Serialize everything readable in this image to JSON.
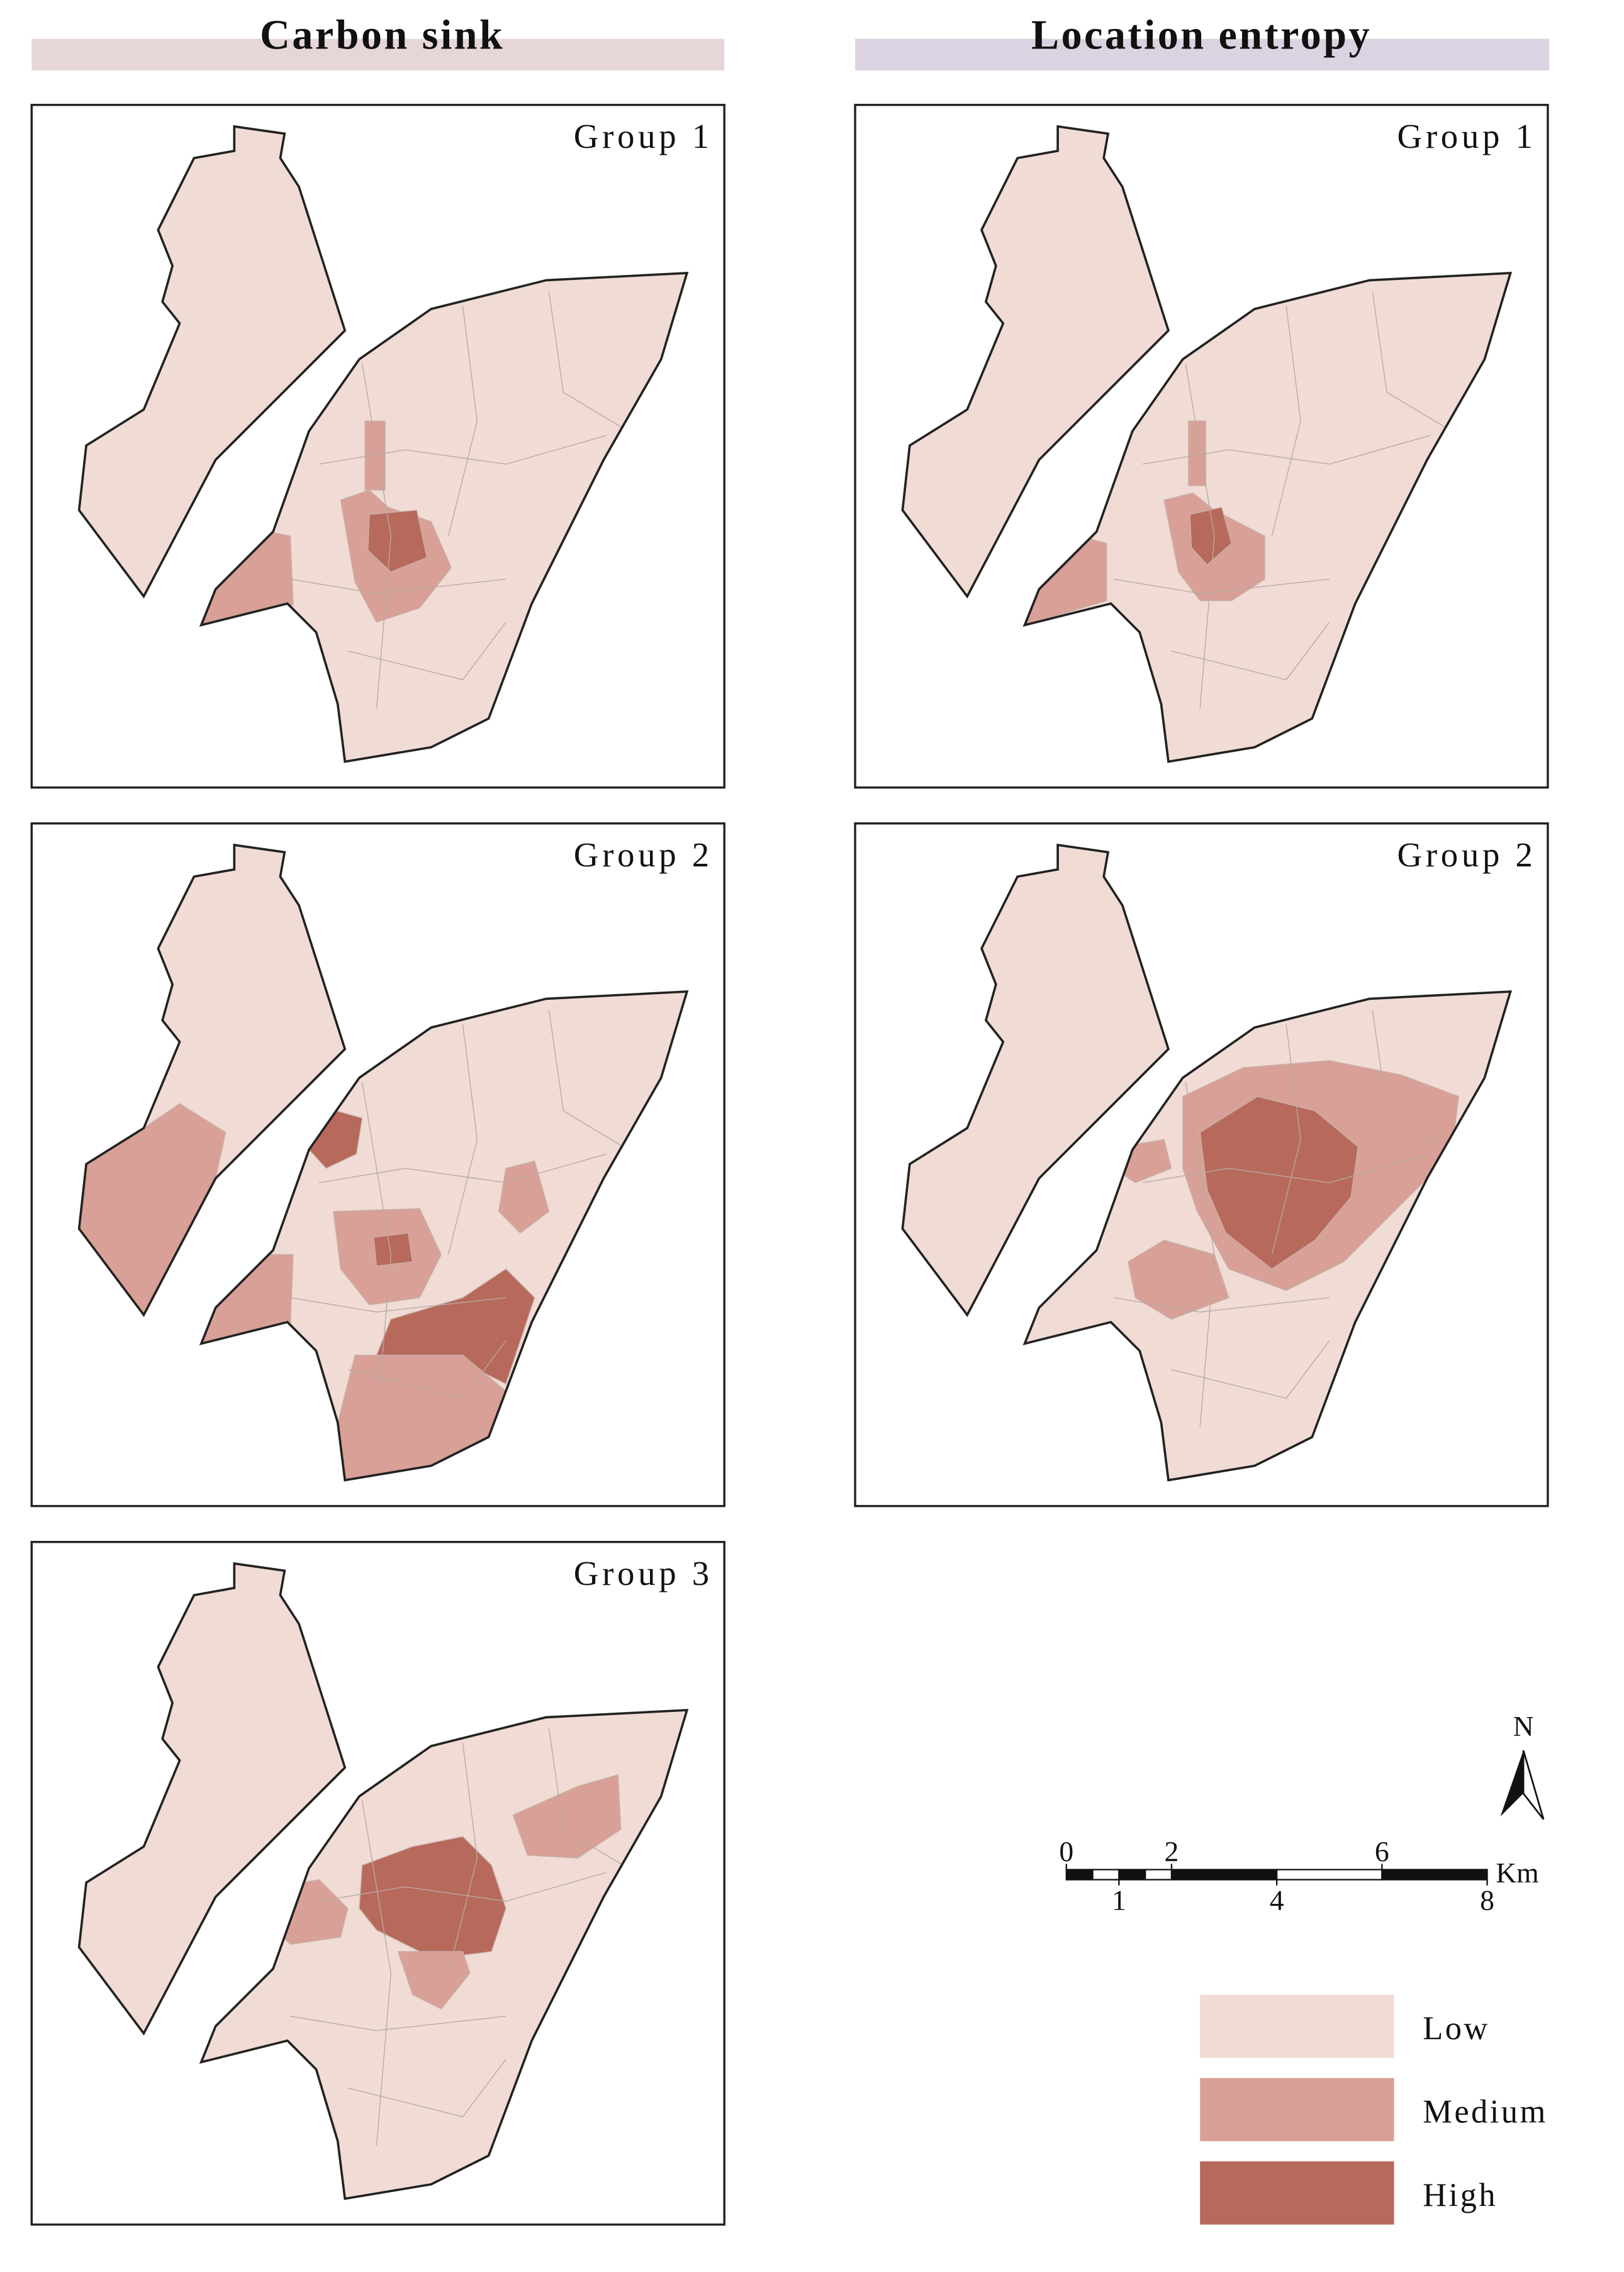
{
  "carbon_sink": {
    "title": "Carbon sink",
    "panels": [
      "Group 1",
      "Group 2",
      "Group 3"
    ]
  },
  "location_entropy": {
    "title": "Location entropy",
    "panels": [
      "Group 1",
      "Group 2"
    ]
  },
  "north_arrow": "N",
  "scale_bar": {
    "ticks": [
      0,
      1,
      2,
      4,
      6,
      8
    ],
    "unit": "Km"
  },
  "legend": [
    {
      "label": "Low",
      "color": "#f0dcd4"
    },
    {
      "label": "Medium",
      "color": "#d8a096"
    },
    {
      "label": "High",
      "color": "#b7695b"
    }
  ]
}
